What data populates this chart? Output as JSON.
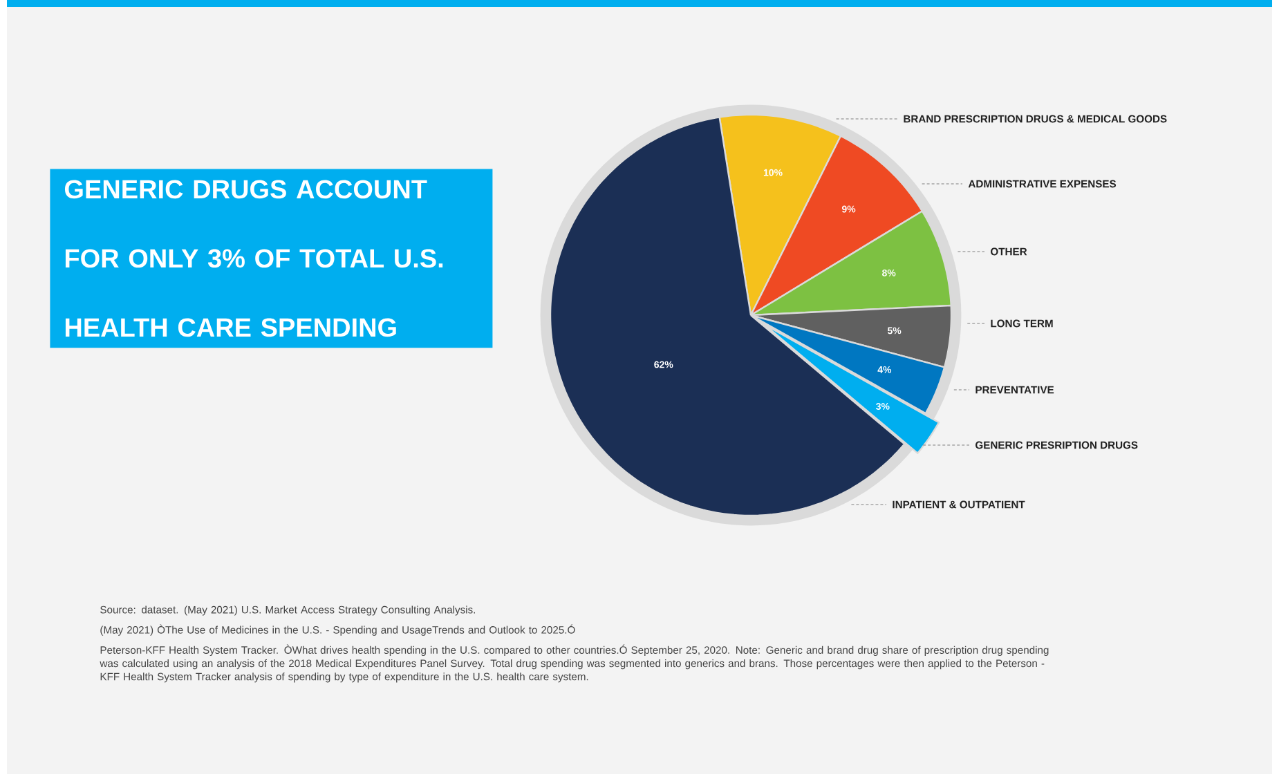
{
  "chart_data": {
    "type": "pie",
    "title": "GENERIC DRUGS ACCOUNT FOR ONLY 3% OF TOTAL U.S. HEALTH CARE SPENDING",
    "categories": [
      "BRAND PRESCRIPTION DRUGS & MEDICAL GOODS",
      "ADMINISTRATIVE EXPENSES",
      "OTHER",
      "LONG TERM",
      "PREVENTATIVE",
      "GENERIC PRESRIPTION DRUGS",
      "INPATIENT & OUTPATIENT"
    ],
    "values": [
      10,
      9,
      8,
      5,
      4,
      3,
      62
    ],
    "value_labels": [
      "10%",
      "9%",
      "8%",
      "5%",
      "4%",
      "3%",
      "62%"
    ],
    "colors": [
      "#f5c11c",
      "#ef4a23",
      "#7dc142",
      "#606060",
      "#0077c1",
      "#00aeef",
      "#1b2f55"
    ],
    "annotations": [
      "Source: dataset. (May 2021) U.S. Market Access Strategy Consulting Analysis.",
      "(May 2021) ÒThe Use of Medicines in the U.S. - Spending and UsageTrends and Outlook to 2025.Ó",
      "Peterson-KFF Health System Tracker. ÒWhat drives health spending in the U.S. compared to other countries.Ó September 25, 2020. Note: Generic and brand drug share of prescription drug spending was calculated using an analysis of the 2018 Medical Expenditures Panel Survey. Total drug spending was segmented into generics and brans. Those percentages were then applied to the Peterson -KFF Health System Tracker analysis of spending by type of expenditure in the U.S. health care system."
    ]
  }
}
